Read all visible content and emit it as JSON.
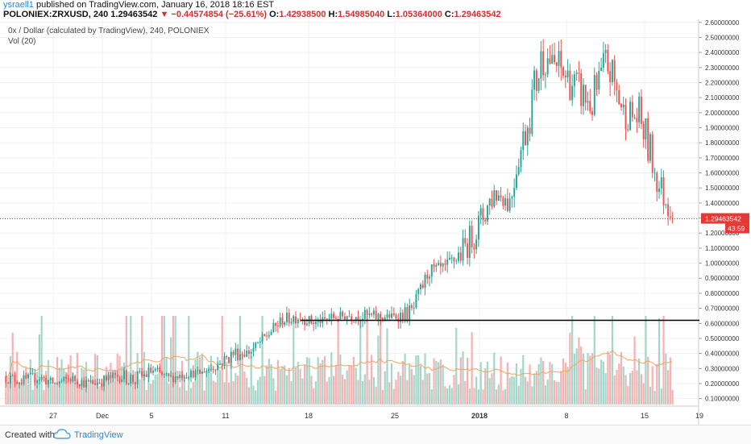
{
  "header": {
    "username": "ysraell1",
    "published_text": " published on TradingView.com, January 16, 2018 18:16 EST",
    "symbol": "POLONIEX:ZRXUSD, 240",
    "last": "1.29463542",
    "change_icon": "down-triangle-icon",
    "change": "−0.44574854 (−25.61%)",
    "o_label": "O:",
    "o_value": "1.42938500",
    "h_label": "H:",
    "h_value": "1.54985040",
    "l_label": "L:",
    "l_value": "1.05364000",
    "c_label": "C:",
    "c_value": "1.29463542"
  },
  "legend": {
    "title": "0x / Dollar (calculated by TradingView), 240, POLONIEX",
    "volume": "Vol (20)"
  },
  "footer": {
    "created_with": "Created with",
    "brand": "TradingView",
    "logo_icon": "tradingview-cloud-icon"
  },
  "colors": {
    "up": "#26a69a",
    "down": "#ef5350",
    "vol_up": "#a5d6c9",
    "vol_down": "#f4b3b2",
    "ma": "#f4a460",
    "last_price_line": "#e53935",
    "support_line": "#000000",
    "grid": "#eef1f4"
  },
  "chart_data": {
    "type": "candlestick",
    "title": "0x / Dollar (calculated by TradingView), 240, POLONIEX",
    "y_tick_labels": [
      "0.10000000",
      "0.20000000",
      "0.30000000",
      "0.40000000",
      "0.50000000",
      "0.60000000",
      "0.70000000",
      "0.80000000",
      "0.90000000",
      "1.00000000",
      "1.10000000",
      "1.20000000",
      "1.30000000",
      "1.40000000",
      "1.50000000",
      "1.60000000",
      "1.70000000",
      "1.80000000",
      "1.90000000",
      "2.00000000",
      "2.10000000",
      "2.20000000",
      "2.30000000",
      "2.40000000",
      "2.50000000",
      "2.60000000"
    ],
    "ylim": [
      0.05,
      2.62
    ],
    "x_tick_labels": [
      "27",
      "Dec",
      "5",
      "11",
      "18",
      "25",
      "2018",
      "8",
      "15",
      "19"
    ],
    "last_price_label": "1.29463542",
    "countdown_label": "43:59",
    "last_price": 1.2946,
    "support_level": 0.62,
    "volume_indicator": "Vol (20)",
    "grid": true,
    "series_path": [
      [
        0.25,
        0.2
      ],
      [
        0.23,
        0.18
      ],
      [
        0.26,
        0.2
      ],
      [
        0.2,
        0.17
      ],
      [
        0.24,
        0.2
      ],
      [
        0.21,
        0.16
      ],
      [
        0.23,
        0.18
      ],
      [
        0.27,
        0.21
      ],
      [
        0.26,
        0.16
      ],
      [
        0.3,
        0.24
      ],
      [
        0.24,
        0.2
      ],
      [
        0.27,
        0.23
      ],
      [
        0.26,
        0.25
      ],
      [
        0.29,
        0.32
      ],
      [
        0.34,
        0.43
      ],
      [
        0.38,
        0.4
      ],
      [
        0.47,
        0.52
      ],
      [
        0.58,
        0.62
      ],
      [
        0.6,
        0.65
      ],
      [
        0.57,
        0.59
      ],
      [
        0.63,
        0.6
      ],
      [
        0.64,
        0.62
      ],
      [
        0.65,
        0.6
      ],
      [
        0.64,
        0.6
      ],
      [
        0.61,
        0.64
      ],
      [
        0.6,
        0.7
      ],
      [
        0.9,
        0.94
      ],
      [
        0.92,
        0.95
      ],
      [
        0.98,
        1.1
      ],
      [
        1.12,
        1.28
      ],
      [
        1.36,
        1.5
      ],
      [
        1.47,
        1.28
      ],
      [
        1.75,
        2.0
      ],
      [
        2.22,
        2.45
      ],
      [
        2.33,
        2.15
      ],
      [
        2.2,
        2.05
      ],
      [
        2.1,
        1.9
      ],
      [
        2.4,
        2.15
      ],
      [
        2.0,
        1.9
      ],
      [
        2.02,
        1.8
      ],
      [
        1.65,
        1.45
      ],
      [
        1.45,
        1.29
      ]
    ]
  }
}
